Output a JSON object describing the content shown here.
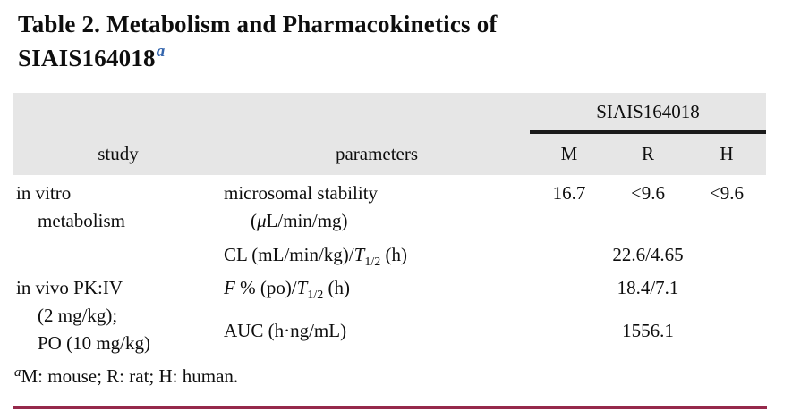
{
  "title": {
    "line1": "Table 2. Metabolism and Pharmacokinetics of",
    "line2": "SIAIS164018",
    "superscript": "a"
  },
  "table": {
    "spanner": "SIAIS164018",
    "columns": {
      "study": "study",
      "parameters": "parameters",
      "m": "M",
      "r": "R",
      "h": "H"
    },
    "rows": [
      {
        "study_l1": "in vitro",
        "study_l2": "metabolism",
        "param_l1": "microsomal stability",
        "param_l2_open": "(",
        "param_l2_mu": "μ",
        "param_l2_rest": "L/min/mg)",
        "m": "16.7",
        "r": "<9.6",
        "h": "<9.6"
      },
      {
        "param_a": "CL (mL/min/kg)/",
        "param_T": "T",
        "param_sub": "1/2",
        "param_b": " (h)",
        "value": "22.6/4.65"
      },
      {
        "study_l1": "in vivo PK:IV",
        "study_l2": "(2 mg/kg);",
        "study_l3": "PO (10 mg/kg)",
        "param1_F": "F",
        "param1_a": " % (po)/",
        "param1_T": "T",
        "param1_sub": "1/2",
        "param1_b": " (h)",
        "value1": "18.4/7.1",
        "param2": "AUC (h·ng/mL)",
        "value2": "1556.1"
      }
    ]
  },
  "footnote": {
    "superscript": "a",
    "text": "M: mouse; R: rat; H: human."
  },
  "colors": {
    "title_superscript_blue": "#3566ad",
    "header_gray": "#e6e6e6",
    "spanner_rule_black": "#1b1b1b",
    "bottom_rule_maroon": "#96294b"
  }
}
